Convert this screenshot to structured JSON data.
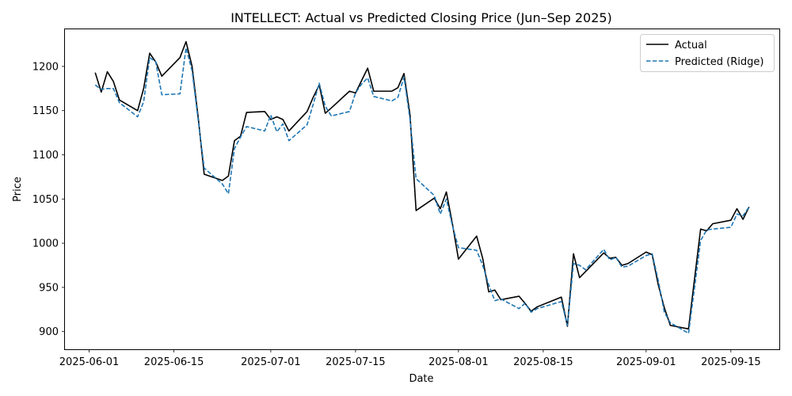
{
  "chart_data": {
    "type": "line",
    "title": "INTELLECT: Actual vs Predicted Closing Price (Jun–Sep 2025)",
    "xlabel": "Date",
    "ylabel": "Price",
    "x_ticks": [
      "2025-06-01",
      "2025-06-15",
      "2025-07-01",
      "2025-07-15",
      "2025-08-01",
      "2025-08-15",
      "2025-09-01",
      "2025-09-15"
    ],
    "y_ticks": [
      900,
      950,
      1000,
      1050,
      1100,
      1150,
      1200
    ],
    "xlim": [
      "2025-05-28",
      "2025-09-23"
    ],
    "ylim": [
      880,
      1242
    ],
    "grid": false,
    "legend_position": "top-right",
    "series": [
      {
        "name": "Actual",
        "color": "#000000",
        "style": "solid",
        "points": [
          [
            "2025-06-02",
            1193
          ],
          [
            "2025-06-03",
            1171
          ],
          [
            "2025-06-04",
            1194
          ],
          [
            "2025-06-05",
            1183
          ],
          [
            "2025-06-06",
            1162
          ],
          [
            "2025-06-09",
            1150
          ],
          [
            "2025-06-10",
            1175
          ],
          [
            "2025-06-11",
            1215
          ],
          [
            "2025-06-12",
            1205
          ],
          [
            "2025-06-13",
            1189
          ],
          [
            "2025-06-16",
            1210
          ],
          [
            "2025-06-17",
            1228
          ],
          [
            "2025-06-18",
            1200
          ],
          [
            "2025-06-19",
            1143
          ],
          [
            "2025-06-20",
            1078
          ],
          [
            "2025-06-23",
            1071
          ],
          [
            "2025-06-24",
            1076
          ],
          [
            "2025-06-25",
            1116
          ],
          [
            "2025-06-26",
            1121
          ],
          [
            "2025-06-27",
            1148
          ],
          [
            "2025-06-30",
            1149
          ],
          [
            "2025-07-01",
            1140
          ],
          [
            "2025-07-02",
            1143
          ],
          [
            "2025-07-03",
            1140
          ],
          [
            "2025-07-04",
            1127
          ],
          [
            "2025-07-07",
            1149
          ],
          [
            "2025-07-08",
            1165
          ],
          [
            "2025-07-09",
            1179
          ],
          [
            "2025-07-10",
            1147
          ],
          [
            "2025-07-11",
            1153
          ],
          [
            "2025-07-14",
            1172
          ],
          [
            "2025-07-15",
            1170
          ],
          [
            "2025-07-16",
            1184
          ],
          [
            "2025-07-17",
            1198
          ],
          [
            "2025-07-18",
            1172
          ],
          [
            "2025-07-21",
            1172
          ],
          [
            "2025-07-22",
            1176
          ],
          [
            "2025-07-23",
            1192
          ],
          [
            "2025-07-24",
            1145
          ],
          [
            "2025-07-25",
            1037
          ],
          [
            "2025-07-28",
            1051
          ],
          [
            "2025-07-29",
            1039
          ],
          [
            "2025-07-30",
            1058
          ],
          [
            "2025-07-31",
            1022
          ],
          [
            "2025-08-01",
            982
          ],
          [
            "2025-08-04",
            1008
          ],
          [
            "2025-08-05",
            983
          ],
          [
            "2025-08-06",
            945
          ],
          [
            "2025-08-07",
            947
          ],
          [
            "2025-08-08",
            936
          ],
          [
            "2025-08-11",
            940
          ],
          [
            "2025-08-12",
            932
          ],
          [
            "2025-08-13",
            923
          ],
          [
            "2025-08-14",
            928
          ],
          [
            "2025-08-18",
            939
          ],
          [
            "2025-08-19",
            906
          ],
          [
            "2025-08-20",
            988
          ],
          [
            "2025-08-21",
            961
          ],
          [
            "2025-08-22",
            968
          ],
          [
            "2025-08-25",
            989
          ],
          [
            "2025-08-26",
            983
          ],
          [
            "2025-08-27",
            984
          ],
          [
            "2025-08-28",
            975
          ],
          [
            "2025-08-29",
            977
          ],
          [
            "2025-09-01",
            990
          ],
          [
            "2025-09-02",
            987
          ],
          [
            "2025-09-03",
            953
          ],
          [
            "2025-09-04",
            927
          ],
          [
            "2025-09-05",
            907
          ],
          [
            "2025-09-08",
            903
          ],
          [
            "2025-09-09",
            960
          ],
          [
            "2025-09-10",
            1016
          ],
          [
            "2025-09-11",
            1014
          ],
          [
            "2025-09-12",
            1022
          ],
          [
            "2025-09-15",
            1026
          ],
          [
            "2025-09-16",
            1039
          ],
          [
            "2025-09-17",
            1027
          ],
          [
            "2025-09-18",
            1041
          ]
        ]
      },
      {
        "name": "Predicted (Ridge)",
        "color": "#1f77b4",
        "style": "dashed",
        "points": [
          [
            "2025-06-02",
            1179
          ],
          [
            "2025-06-03",
            1174
          ],
          [
            "2025-06-04",
            1175
          ],
          [
            "2025-06-05",
            1175
          ],
          [
            "2025-06-06",
            1159
          ],
          [
            "2025-06-09",
            1143
          ],
          [
            "2025-06-10",
            1160
          ],
          [
            "2025-06-11",
            1210
          ],
          [
            "2025-06-12",
            1205
          ],
          [
            "2025-06-13",
            1168
          ],
          [
            "2025-06-16",
            1169
          ],
          [
            "2025-06-17",
            1221
          ],
          [
            "2025-06-18",
            1195
          ],
          [
            "2025-06-19",
            1140
          ],
          [
            "2025-06-20",
            1085
          ],
          [
            "2025-06-23",
            1067
          ],
          [
            "2025-06-24",
            1056
          ],
          [
            "2025-06-25",
            1107
          ],
          [
            "2025-06-26",
            1120
          ],
          [
            "2025-06-27",
            1132
          ],
          [
            "2025-06-30",
            1127
          ],
          [
            "2025-07-01",
            1145
          ],
          [
            "2025-07-02",
            1126
          ],
          [
            "2025-07-03",
            1135
          ],
          [
            "2025-07-04",
            1116
          ],
          [
            "2025-07-07",
            1134
          ],
          [
            "2025-07-08",
            1157
          ],
          [
            "2025-07-09",
            1181
          ],
          [
            "2025-07-10",
            1155
          ],
          [
            "2025-07-11",
            1144
          ],
          [
            "2025-07-14",
            1149
          ],
          [
            "2025-07-15",
            1170
          ],
          [
            "2025-07-16",
            1180
          ],
          [
            "2025-07-17",
            1187
          ],
          [
            "2025-07-18",
            1166
          ],
          [
            "2025-07-21",
            1161
          ],
          [
            "2025-07-22",
            1165
          ],
          [
            "2025-07-23",
            1188
          ],
          [
            "2025-07-24",
            1140
          ],
          [
            "2025-07-25",
            1073
          ],
          [
            "2025-07-28",
            1054
          ],
          [
            "2025-07-29",
            1033
          ],
          [
            "2025-07-30",
            1050
          ],
          [
            "2025-07-31",
            1020
          ],
          [
            "2025-08-01",
            995
          ],
          [
            "2025-08-04",
            992
          ],
          [
            "2025-08-05",
            975
          ],
          [
            "2025-08-06",
            953
          ],
          [
            "2025-08-07",
            935
          ],
          [
            "2025-08-08",
            937
          ],
          [
            "2025-08-11",
            926
          ],
          [
            "2025-08-12",
            932
          ],
          [
            "2025-08-13",
            922
          ],
          [
            "2025-08-14",
            926
          ],
          [
            "2025-08-18",
            934
          ],
          [
            "2025-08-19",
            907
          ],
          [
            "2025-08-20",
            977
          ],
          [
            "2025-08-21",
            975
          ],
          [
            "2025-08-22",
            970
          ],
          [
            "2025-08-25",
            993
          ],
          [
            "2025-08-26",
            981
          ],
          [
            "2025-08-27",
            984
          ],
          [
            "2025-08-28",
            973
          ],
          [
            "2025-08-29",
            974
          ],
          [
            "2025-09-01",
            986
          ],
          [
            "2025-09-02",
            988
          ],
          [
            "2025-09-03",
            958
          ],
          [
            "2025-09-04",
            922
          ],
          [
            "2025-09-05",
            910
          ],
          [
            "2025-09-08",
            898
          ],
          [
            "2025-09-09",
            950
          ],
          [
            "2025-09-10",
            1003
          ],
          [
            "2025-09-11",
            1015
          ],
          [
            "2025-09-12",
            1016
          ],
          [
            "2025-09-15",
            1018
          ],
          [
            "2025-09-16",
            1033
          ],
          [
            "2025-09-17",
            1031
          ],
          [
            "2025-09-18",
            1041
          ]
        ]
      }
    ]
  }
}
